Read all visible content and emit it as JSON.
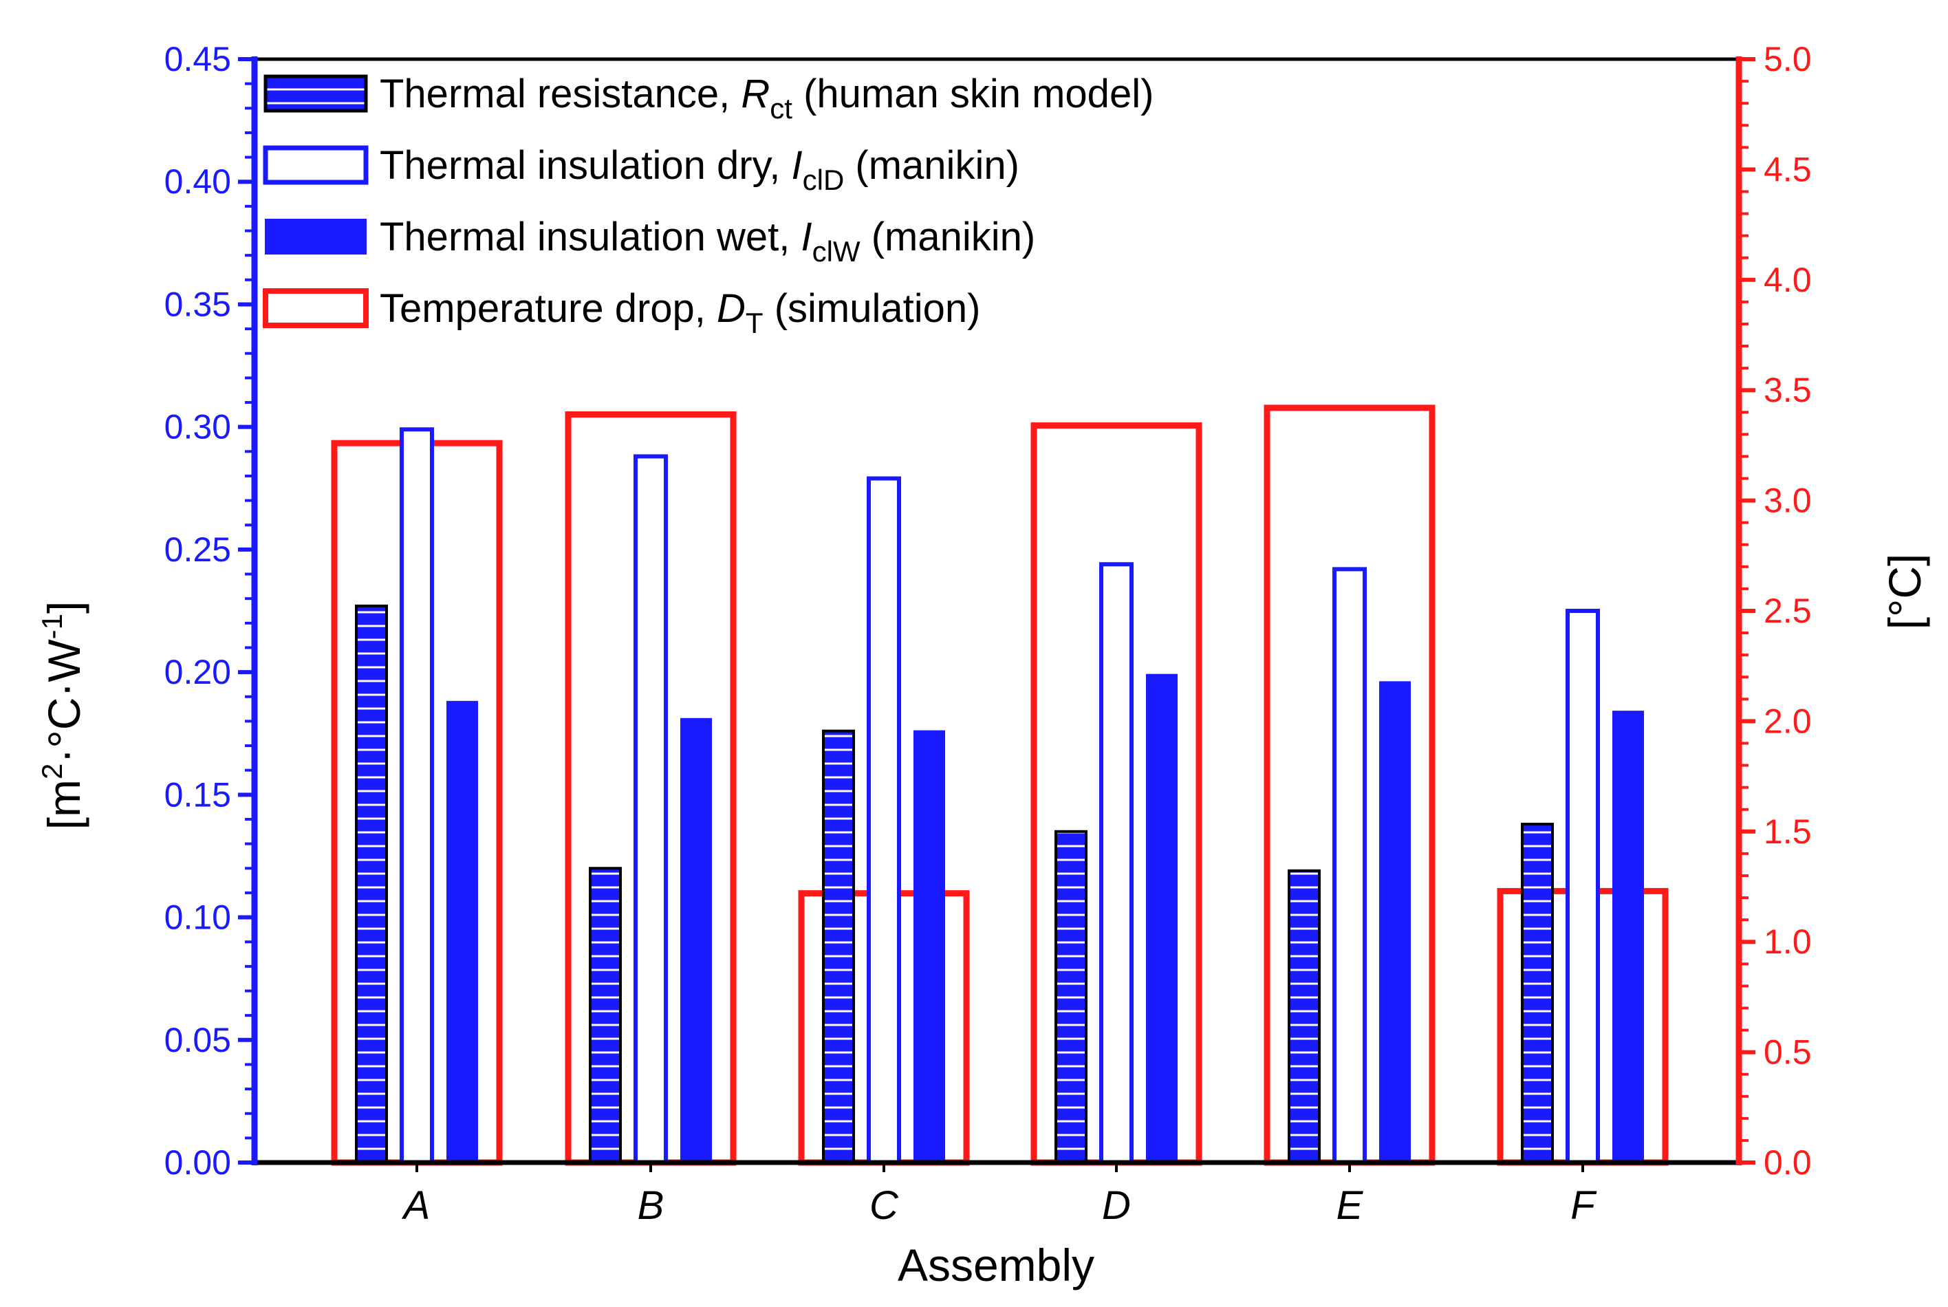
{
  "chart_data": {
    "type": "bar",
    "categories": [
      "A",
      "B",
      "C",
      "D",
      "E",
      "F"
    ],
    "xlabel": "Assembly",
    "ylabel_left": {
      "prefix": "[m",
      "sup1": "2",
      "mid": "·°C·W",
      "sup2": "-1",
      "suffix": "]"
    },
    "ylabel_right": "[°C]",
    "ylim_left": [
      0,
      0.45
    ],
    "ylim_right": [
      0,
      5.0
    ],
    "yticks_left": [
      "0.00",
      "0.05",
      "0.10",
      "0.15",
      "0.20",
      "0.25",
      "0.30",
      "0.35",
      "0.40",
      "0.45"
    ],
    "yticks_right": [
      "0.0",
      "0.5",
      "1.0",
      "1.5",
      "2.0",
      "2.5",
      "3.0",
      "3.5",
      "4.0",
      "4.5",
      "5.0"
    ],
    "series": [
      {
        "key": "rct",
        "axis": "left",
        "style": "hatched",
        "legend": {
          "pre": "Thermal resistance, ",
          "sym": "R",
          "sub": "ct",
          "post": " (human skin model)"
        },
        "values": [
          0.227,
          0.12,
          0.176,
          0.135,
          0.119,
          0.138
        ]
      },
      {
        "key": "iclD",
        "axis": "left",
        "style": "outline-blue",
        "legend": {
          "pre": "Thermal insulation dry,  ",
          "sym": "I",
          "sub": "clD",
          "post": " (manikin)"
        },
        "values": [
          0.299,
          0.288,
          0.279,
          0.244,
          0.242,
          0.225
        ]
      },
      {
        "key": "iclW",
        "axis": "left",
        "style": "solid-blue",
        "legend": {
          "pre": "Thermal insulation wet, ",
          "sym": "I",
          "sub": "clW",
          "post": " (manikin)"
        },
        "values": [
          0.188,
          0.181,
          0.176,
          0.199,
          0.196,
          0.184
        ]
      },
      {
        "key": "dt",
        "axis": "right",
        "style": "outline-red",
        "legend": {
          "pre": "Temperature drop, ",
          "sym": "D",
          "sub": "T",
          "post": " (simulation)"
        },
        "values": [
          3.26,
          3.39,
          1.22,
          3.34,
          3.42,
          1.23
        ]
      }
    ],
    "colors": {
      "blue": "#1a1aff",
      "red": "#ff1a1a",
      "black": "#000000"
    },
    "grid": false,
    "legend_position": "top-left"
  }
}
